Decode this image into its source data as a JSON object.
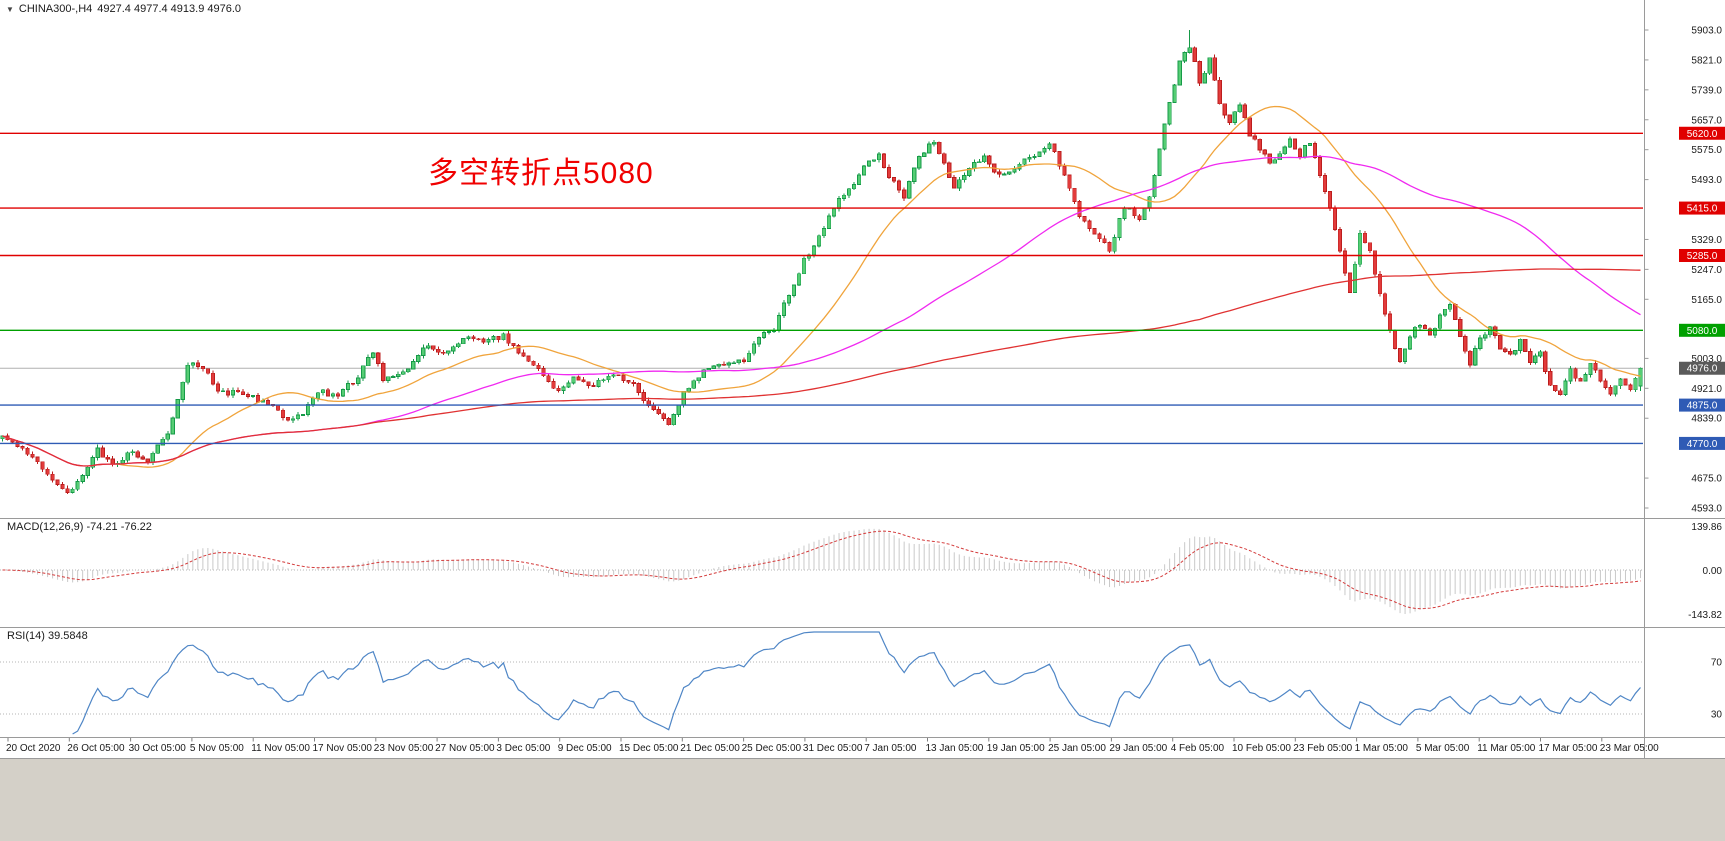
{
  "header": {
    "collapse_icon": "▼",
    "symbol": "CHINA300-,H4",
    "ohlc": "4927.4 4977.4 4913.9 4976.0"
  },
  "chart_data": {
    "type": "candlestick",
    "symbol": "CHINA300-",
    "timeframe": "H4",
    "current_quote": {
      "open": 4927.4,
      "high": 4977.4,
      "low": 4913.9,
      "close": 4976.0
    },
    "annotation": {
      "text": "多空转折点5080",
      "color": "#f00000"
    },
    "ylim": [
      4593.0,
      5903.0
    ],
    "y_ticks": [
      5903.0,
      5821.0,
      5739.0,
      5657.0,
      5575.0,
      5493.0,
      5411.0,
      5329.0,
      5247.0,
      5165.0,
      5083.0,
      5003.0,
      4921.0,
      4839.0,
      4757.0,
      4675.0,
      4593.0
    ],
    "x_labels": [
      "20 Oct 2020",
      "26 Oct 05:00",
      "30 Oct 05:00",
      "5 Nov 05:00",
      "11 Nov 05:00",
      "17 Nov 05:00",
      "23 Nov 05:00",
      "27 Nov 05:00",
      "3 Dec 05:00",
      "9 Dec 05:00",
      "15 Dec 05:00",
      "21 Dec 05:00",
      "25 Dec 05:00",
      "31 Dec 05:00",
      "7 Jan 05:00",
      "13 Jan 05:00",
      "19 Jan 05:00",
      "25 Jan 05:00",
      "29 Jan 05:00",
      "4 Feb 05:00",
      "10 Feb 05:00",
      "23 Feb 05:00",
      "1 Mar 05:00",
      "5 Mar 05:00",
      "11 Mar 05:00",
      "17 Mar 05:00",
      "23 Mar 05:00"
    ],
    "levels": [
      {
        "price": 5620.0,
        "label": "5620.0",
        "color": "#e00000",
        "kind": "resistance"
      },
      {
        "price": 5415.0,
        "label": "5415.0",
        "color": "#e00000",
        "kind": "resistance"
      },
      {
        "price": 5285.0,
        "label": "5285.0",
        "color": "#e00000",
        "kind": "resistance"
      },
      {
        "price": 5080.0,
        "label": "5080.0",
        "color": "#00a000",
        "kind": "pivot"
      },
      {
        "price": 4875.0,
        "label": "4875.0",
        "color": "#2f5bb5",
        "kind": "support"
      },
      {
        "price": 4770.0,
        "label": "4770.0",
        "color": "#2f5bb5",
        "kind": "support"
      }
    ],
    "price_line": {
      "price": 4976.0,
      "label": "4976.0",
      "badge_color": "#5a5a5a",
      "line_color": "#b0b0b0"
    },
    "candle_colors": {
      "up_fill": "#56cd74",
      "up_stroke": "#169a48",
      "down_fill": "#e23b3b",
      "down_stroke": "#bb1d1d"
    },
    "moving_averages": [
      {
        "period": 24,
        "color": "#f0a43c"
      },
      {
        "period": 72,
        "color": "#f02af0"
      },
      {
        "period": 240,
        "color": "#e03232"
      }
    ],
    "bars": 328,
    "peak": {
      "bar": 237,
      "high": 5903.0
    },
    "noise": {
      "seed": 9,
      "body": 16,
      "wick": 9
    },
    "close_anchors": [
      [
        0,
        4785
      ],
      [
        4,
        4750
      ],
      [
        9,
        4690
      ],
      [
        13,
        4635
      ],
      [
        16,
        4680
      ],
      [
        19,
        4755
      ],
      [
        22,
        4710
      ],
      [
        26,
        4750
      ],
      [
        29,
        4720
      ],
      [
        33,
        4800
      ],
      [
        37,
        4990
      ],
      [
        40,
        4975
      ],
      [
        43,
        4915
      ],
      [
        48,
        4905
      ],
      [
        53,
        4880
      ],
      [
        57,
        4835
      ],
      [
        60,
        4855
      ],
      [
        63,
        4915
      ],
      [
        67,
        4900
      ],
      [
        71,
        4955
      ],
      [
        74,
        5025
      ],
      [
        76,
        4945
      ],
      [
        80,
        4960
      ],
      [
        85,
        5040
      ],
      [
        88,
        5015
      ],
      [
        92,
        5060
      ],
      [
        97,
        5050
      ],
      [
        100,
        5065
      ],
      [
        104,
        5010
      ],
      [
        108,
        4955
      ],
      [
        111,
        4915
      ],
      [
        114,
        4950
      ],
      [
        118,
        4925
      ],
      [
        122,
        4965
      ],
      [
        126,
        4930
      ],
      [
        130,
        4855
      ],
      [
        133,
        4825
      ],
      [
        136,
        4905
      ],
      [
        140,
        4965
      ],
      [
        144,
        4990
      ],
      [
        148,
        5000
      ],
      [
        151,
        5060
      ],
      [
        154,
        5085
      ],
      [
        157,
        5180
      ],
      [
        160,
        5270
      ],
      [
        163,
        5340
      ],
      [
        166,
        5420
      ],
      [
        169,
        5460
      ],
      [
        172,
        5530
      ],
      [
        175,
        5560
      ],
      [
        177,
        5500
      ],
      [
        180,
        5450
      ],
      [
        183,
        5550
      ],
      [
        186,
        5600
      ],
      [
        188,
        5540
      ],
      [
        190,
        5470
      ],
      [
        193,
        5520
      ],
      [
        196,
        5560
      ],
      [
        199,
        5500
      ],
      [
        202,
        5530
      ],
      [
        205,
        5555
      ],
      [
        209,
        5590
      ],
      [
        212,
        5510
      ],
      [
        215,
        5400
      ],
      [
        218,
        5340
      ],
      [
        221,
        5300
      ],
      [
        224,
        5420
      ],
      [
        227,
        5390
      ],
      [
        229,
        5440
      ],
      [
        231,
        5580
      ],
      [
        233,
        5700
      ],
      [
        235,
        5820
      ],
      [
        237,
        5860
      ],
      [
        239,
        5760
      ],
      [
        241,
        5820
      ],
      [
        243,
        5700
      ],
      [
        245,
        5650
      ],
      [
        247,
        5700
      ],
      [
        249,
        5620
      ],
      [
        251,
        5580
      ],
      [
        253,
        5540
      ],
      [
        255,
        5560
      ],
      [
        257,
        5600
      ],
      [
        259,
        5560
      ],
      [
        261,
        5600
      ],
      [
        263,
        5500
      ],
      [
        265,
        5420
      ],
      [
        267,
        5300
      ],
      [
        269,
        5180
      ],
      [
        271,
        5350
      ],
      [
        273,
        5300
      ],
      [
        275,
        5180
      ],
      [
        277,
        5080
      ],
      [
        279,
        4990
      ],
      [
        281,
        5070
      ],
      [
        283,
        5100
      ],
      [
        285,
        5060
      ],
      [
        287,
        5120
      ],
      [
        289,
        5150
      ],
      [
        291,
        5060
      ],
      [
        293,
        4990
      ],
      [
        295,
        5060
      ],
      [
        297,
        5090
      ],
      [
        299,
        5030
      ],
      [
        301,
        5010
      ],
      [
        303,
        5050
      ],
      [
        305,
        4990
      ],
      [
        307,
        5020
      ],
      [
        309,
        4930
      ],
      [
        311,
        4900
      ],
      [
        313,
        4970
      ],
      [
        315,
        4940
      ],
      [
        317,
        4990
      ],
      [
        319,
        4940
      ],
      [
        321,
        4910
      ],
      [
        323,
        4950
      ],
      [
        325,
        4920
      ],
      [
        327,
        4976
      ]
    ],
    "indicators": {
      "macd": {
        "label": "MACD(12,26,9) -74.21 -76.22",
        "fast": 12,
        "slow": 26,
        "signal_period": 9,
        "main_value": -74.21,
        "signal_value": -76.22,
        "scale_ticks": [
          "139.86",
          "0.00",
          "-143.82"
        ],
        "histogram_color": "#c9c9c9",
        "signal_color": "#d43c3c"
      },
      "rsi": {
        "label": "RSI(14) 39.5848",
        "period": 14,
        "value": 39.5848,
        "levels": [
          70,
          30
        ],
        "scale_ticks": [
          "70",
          "30"
        ],
        "line_color": "#4f86c6"
      }
    }
  }
}
